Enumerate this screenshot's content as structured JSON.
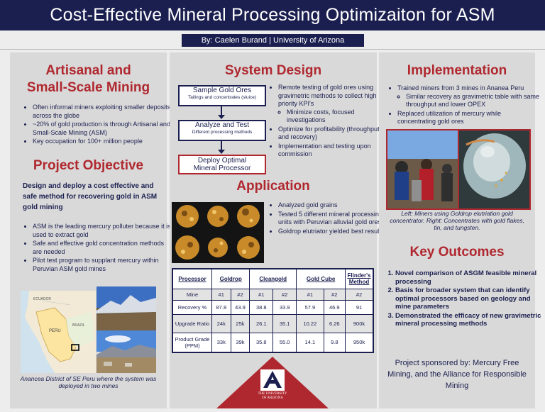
{
  "title": "Cost-Effective Mineral Processing Optimizaiton for ASM",
  "author": "By: Caelen Burand | University of Arizona",
  "col1": {
    "heading1_line1": "Artisanal and",
    "heading1_line2": "Small-Scale Mining",
    "asm_bullets": [
      "Often informal miners exploiting smaller deposits across the globe",
      "~20% of gold production is through Artisanal and Small-Scale Mining (ASM)",
      "Key occupation for 100+ million people"
    ],
    "heading2": "Project Objective",
    "objective": "Design and deploy a cost effective and safe method for recovering gold in ASM gold mining",
    "objective_bullets": [
      "ASM is the leading mercury polluter because it is used to extract gold",
      "Safe and effective gold concentration methods are needed",
      "Pilot test program to supplant mercury within Peruvian ASM gold mines"
    ],
    "map_labels": {
      "ecuador": "ECUADOR",
      "brazil": "BRAZIL",
      "peru": "PERU"
    },
    "caption": "Anancea District of SE Peru where the system was deployed in two mines"
  },
  "col2": {
    "heading1": "System Design",
    "flow": [
      {
        "title": "Sample Gold Ores",
        "sub": "Tailings and concentrates (sluice)"
      },
      {
        "title": "Analyze and Test",
        "sub": "Different processing methods"
      },
      {
        "title": "Deploy Optimal Mineral Processor",
        "sub": ""
      }
    ],
    "flow3_line1": "Deploy Optimal",
    "flow3_line2": "Mineral Processor",
    "design_bullets": {
      "b1": "Remote testing of gold ores using gravimetric methods to collect high priority KPI's",
      "b1_sub": "Minimize costs, focused investigations",
      "b2": "Optimize for profitability (throughput and recovery)",
      "b3": "Implementation and testing upon commission"
    },
    "heading2": "Application",
    "app_bullets": [
      "Analyzed gold grains",
      "Tested 5 different mineral processing units with Peruvian alluvial gold ores",
      "Goldrop elutriator yielded best results"
    ],
    "table": {
      "headers": [
        "Processor",
        "Goldrop",
        "Cleangold",
        "Gold Cube",
        "Flinder's Method"
      ],
      "rows": [
        {
          "label": "Mine",
          "cells": [
            "#1",
            "#2",
            "#1",
            "#2",
            "#1",
            "#2",
            "#2"
          ]
        },
        {
          "label": "Recovery %",
          "cells": [
            "87.8",
            "43.9",
            "38.8",
            "33.9",
            "57.9",
            "46.9",
            "91"
          ]
        },
        {
          "label": "Upgrade Ratio",
          "cells": [
            "24k",
            "25k",
            "26.1",
            "35.1",
            "10.22",
            "6.26",
            "900k"
          ]
        },
        {
          "label": "Product Grade (PPM)",
          "cells": [
            "33k",
            "39k",
            "35.8",
            "55.0",
            "14.1",
            "9.8",
            "950k"
          ]
        }
      ]
    },
    "logo_line1": "THE UNIVERSITY",
    "logo_line2": "OF ARIZONA"
  },
  "col3": {
    "heading1": "Implementation",
    "impl_bullets": {
      "b1": "Trained miners from 3 mines in Ananea Peru",
      "b1_sub": "Similar recovery as gravimetric table with same throughput and lower OPEX",
      "b2": "Replaced utilization of mercury while concentrating gold ores"
    },
    "caption": "Left: Miners using Goldrop elutriation gold concentrator. Right: Concentrates with gold flakes, tin, and tungsten.",
    "heading2": "Key Outcomes",
    "outcomes": [
      "Novel comparison of ASGM feasible mineral processing",
      "Basis for broader system that can identify optimal processors based on geology and mine parameters",
      "Demonstrated the efficacy of new gravimetric mineral processing methods"
    ],
    "sponsor": "Project sponsored by: Mercury Free Mining, and the Alliance for Responsible Mining"
  },
  "colors": {
    "navy": "#1b1f4f",
    "red": "#b0282f",
    "panel": "#d9d9d9"
  }
}
